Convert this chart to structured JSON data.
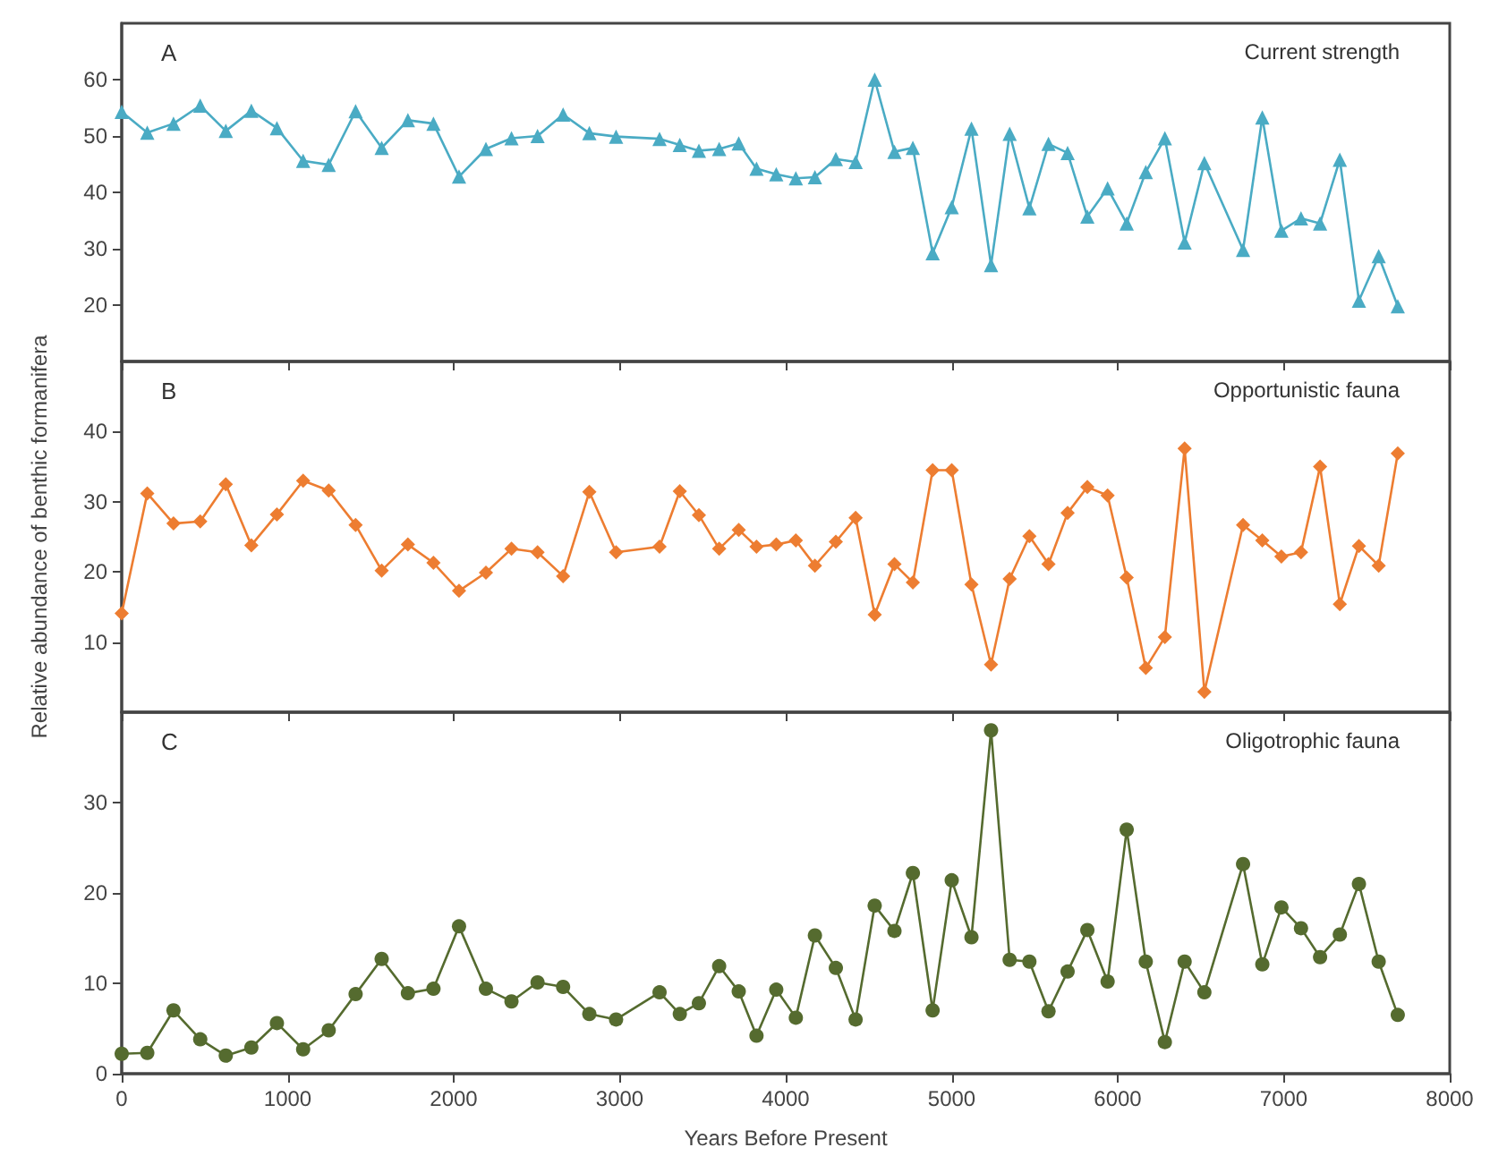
{
  "chart_data": [
    {
      "type": "line",
      "annotations": [
        "A",
        "Current strength"
      ],
      "marker": "triangle",
      "tick_labels": "y",
      "x": [
        0,
        154,
        312,
        473,
        627,
        781,
        935,
        1093,
        1247,
        1409,
        1566,
        1724,
        1878,
        2032,
        2194,
        2348,
        2505,
        2659,
        2817,
        2978,
        3240,
        3362,
        3477,
        3599,
        3717,
        3824,
        3943,
        4061,
        4176,
        4302,
        4421,
        4536,
        4655,
        4766,
        4885,
        5000,
        5119,
        5237,
        5349,
        5468,
        5583,
        5698,
        5817,
        5939,
        6054,
        6169,
        6284,
        6403,
        6522,
        6755,
        6871,
        6986,
        7104,
        7219,
        7338,
        7453,
        7572,
        7687
      ],
      "series": [
        {
          "color": "#4aabc4",
          "values": [
            54.3,
            50.6,
            52.2,
            55.4,
            50.9,
            54.5,
            51.4,
            45.6,
            44.9,
            54.4,
            47.9,
            52.8,
            52.2,
            42.8,
            47.7,
            49.6,
            50.0,
            53.8,
            50.5,
            49.9,
            49.5,
            48.4,
            47.4,
            47.7,
            48.7,
            44.2,
            43.2,
            42.5,
            42.7,
            45.9,
            45.4,
            60.0,
            47.2,
            47.9,
            29.2,
            37.4,
            51.3,
            27.1,
            50.4,
            37.2,
            48.6,
            47.0,
            35.7,
            40.7,
            34.5,
            43.6,
            49.6,
            31.1,
            45.2,
            29.8,
            53.3,
            33.2,
            35.4,
            34.5,
            45.8,
            20.8,
            28.7,
            19.8
          ]
        }
      ],
      "xlim": [
        0,
        8000
      ],
      "xticks": [
        0,
        1000,
        2000,
        3000,
        4000,
        5000,
        6000,
        7000,
        8000
      ],
      "ylim": [
        10,
        70
      ],
      "yticks": [
        20,
        30,
        40,
        50,
        60
      ]
    },
    {
      "type": "line",
      "annotations": [
        "B",
        "Opportunistic fauna"
      ],
      "marker": "diamond",
      "tick_labels": "y",
      "ylabel": "Relative abundance of benthic formanifera",
      "x": [
        0,
        154,
        312,
        473,
        627,
        781,
        935,
        1093,
        1247,
        1409,
        1566,
        1724,
        1878,
        2032,
        2194,
        2348,
        2505,
        2659,
        2817,
        2978,
        3240,
        3362,
        3477,
        3599,
        3717,
        3824,
        3943,
        4061,
        4176,
        4302,
        4421,
        4536,
        4655,
        4766,
        4885,
        5000,
        5119,
        5237,
        5349,
        5468,
        5583,
        5698,
        5817,
        5939,
        6054,
        6169,
        6284,
        6403,
        6522,
        6755,
        6871,
        6986,
        7104,
        7219,
        7338,
        7453,
        7572,
        7687
      ],
      "series": [
        {
          "color": "#ed7d31",
          "values": [
            14.1,
            31.2,
            26.9,
            27.2,
            32.5,
            23.8,
            28.2,
            33.0,
            31.6,
            26.7,
            20.2,
            23.9,
            21.3,
            17.3,
            19.9,
            23.3,
            22.8,
            19.4,
            31.4,
            22.8,
            23.6,
            31.5,
            28.1,
            23.3,
            26.0,
            23.6,
            23.9,
            24.5,
            20.9,
            24.3,
            27.7,
            13.9,
            21.1,
            18.5,
            34.5,
            34.5,
            18.2,
            6.8,
            19.0,
            25.1,
            21.1,
            28.4,
            32.1,
            30.9,
            19.2,
            6.3,
            10.7,
            37.6,
            2.9,
            26.7,
            24.5,
            22.2,
            22.8,
            35.0,
            15.4,
            23.7,
            20.9,
            36.9
          ]
        }
      ],
      "xlim": [
        0,
        8000
      ],
      "xticks": [
        0,
        1000,
        2000,
        3000,
        4000,
        5000,
        6000,
        7000,
        8000
      ],
      "ylim": [
        0,
        50
      ],
      "yticks": [
        10,
        20,
        30,
        40
      ]
    },
    {
      "type": "line",
      "annotations": [
        "C",
        "Oligotrophic fauna"
      ],
      "marker": "circle",
      "xlabel": "Years Before Present",
      "x": [
        0,
        154,
        312,
        473,
        627,
        781,
        935,
        1093,
        1247,
        1409,
        1566,
        1724,
        1878,
        2032,
        2194,
        2348,
        2505,
        2659,
        2817,
        2978,
        3240,
        3362,
        3477,
        3599,
        3717,
        3824,
        3943,
        4061,
        4176,
        4302,
        4421,
        4536,
        4655,
        4766,
        4885,
        5000,
        5119,
        5237,
        5349,
        5468,
        5583,
        5698,
        5817,
        5939,
        6054,
        6169,
        6284,
        6403,
        6522,
        6755,
        6871,
        6986,
        7104,
        7219,
        7338,
        7453,
        7572,
        7687
      ],
      "series": [
        {
          "color": "#556b2f",
          "values": [
            2.2,
            2.3,
            7.0,
            3.8,
            2.0,
            2.9,
            5.6,
            2.7,
            4.8,
            8.8,
            12.7,
            8.9,
            9.4,
            16.3,
            9.4,
            8.0,
            10.1,
            9.6,
            6.6,
            6.0,
            9.0,
            6.6,
            7.8,
            11.9,
            9.1,
            4.2,
            9.3,
            6.2,
            15.3,
            11.7,
            6.0,
            18.6,
            15.8,
            22.2,
            7.0,
            21.4,
            15.1,
            38.0,
            12.6,
            12.4,
            6.9,
            11.3,
            15.9,
            10.2,
            27.0,
            12.4,
            3.5,
            12.4,
            9.0,
            23.2,
            12.1,
            18.4,
            16.1,
            12.9,
            15.4,
            21.0,
            12.4,
            6.5
          ]
        }
      ],
      "xlim": [
        0,
        8000
      ],
      "xticks": [
        0,
        1000,
        2000,
        3000,
        4000,
        5000,
        6000,
        7000,
        8000
      ],
      "ylim": [
        0,
        40
      ],
      "yticks": [
        0,
        10,
        20,
        30
      ]
    }
  ]
}
